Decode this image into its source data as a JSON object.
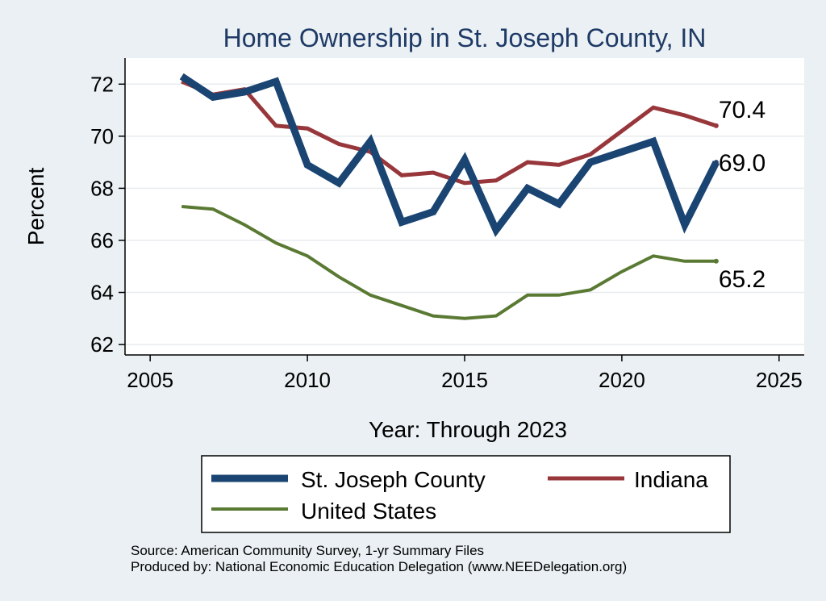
{
  "chart_data": {
    "type": "line",
    "title": "Home Ownership in St. Joseph County, IN",
    "xlabel": "Year: Through 2023",
    "ylabel": "Percent",
    "xlim": [
      2004.2,
      2025.8
    ],
    "ylim": [
      61.6,
      73.0
    ],
    "xticks": [
      2005,
      2010,
      2015,
      2020,
      2025
    ],
    "yticks": [
      62,
      64,
      66,
      68,
      70,
      72
    ],
    "grid": true,
    "x": [
      2006,
      2007,
      2008,
      2009,
      2010,
      2011,
      2012,
      2013,
      2014,
      2015,
      2016,
      2017,
      2018,
      2019,
      2020,
      2021,
      2022,
      2023
    ],
    "series": [
      {
        "name": "St. Joseph County",
        "color": "#1a4472",
        "values": [
          72.3,
          71.5,
          71.7,
          72.1,
          68.9,
          68.2,
          69.8,
          66.7,
          67.1,
          69.1,
          66.4,
          68.0,
          67.4,
          69.0,
          69.4,
          69.8,
          66.6,
          69.0
        ],
        "end_label": "69.0"
      },
      {
        "name": "Indiana",
        "color": "#98373b",
        "values": [
          72.1,
          71.6,
          71.8,
          70.4,
          70.3,
          69.7,
          69.4,
          68.5,
          68.6,
          68.2,
          68.3,
          69.0,
          68.9,
          69.3,
          70.2,
          71.1,
          70.8,
          70.4
        ],
        "end_label": "70.4"
      },
      {
        "name": "United States",
        "color": "#5a7a34",
        "values": [
          67.3,
          67.2,
          66.6,
          65.9,
          65.4,
          64.6,
          63.9,
          63.5,
          63.1,
          63.0,
          63.1,
          63.9,
          63.9,
          64.1,
          64.8,
          65.4,
          65.2,
          65.2
        ],
        "end_label": "65.2"
      }
    ],
    "legend": {
      "position": "bottom",
      "entries": [
        "St. Joseph County",
        "Indiana",
        "United States"
      ]
    },
    "notes": [
      "Source: American Community Survey, 1-yr Summary Files",
      "Produced by: National Economic Education Delegation (www.NEEDelegation.org)"
    ]
  }
}
